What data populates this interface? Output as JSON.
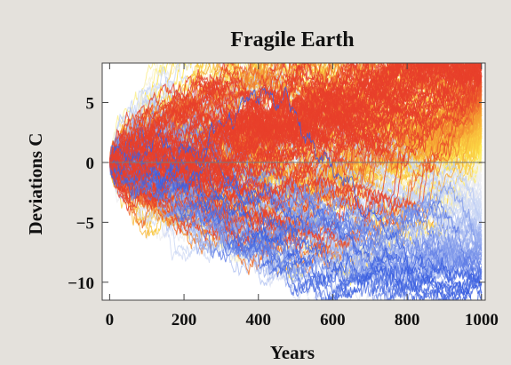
{
  "chart_data": {
    "type": "line",
    "title": "Fragile Earth",
    "xlabel": "Years",
    "ylabel": "Deviations C",
    "xlim": [
      -20,
      1010
    ],
    "ylim": [
      -11.5,
      8.3
    ],
    "x_ticks": [
      0,
      200,
      400,
      600,
      800,
      1000
    ],
    "y_ticks": [
      -10,
      -5,
      0,
      5
    ],
    "baseline": 0,
    "grid": false,
    "legend": "none",
    "colors": {
      "background": "#e4e1dc",
      "plot_background": "#ffffff",
      "frame": "#444444",
      "baseline": "#7a7a7a",
      "hot": "#e8402a",
      "warm": "#f5a033",
      "mild": "#fde84a",
      "neutral": "#f6f4f0",
      "cool": "#c9d6f5",
      "cold": "#3b5fe0"
    },
    "ensemble": {
      "description_of_data": "many random-walk temperature deviation paths starting at 0",
      "paths": 300,
      "steps": 1000,
      "step_sd": 0.22,
      "extremes": {
        "max_at_end": 7.2,
        "min_at_end": -10.8
      }
    }
  }
}
